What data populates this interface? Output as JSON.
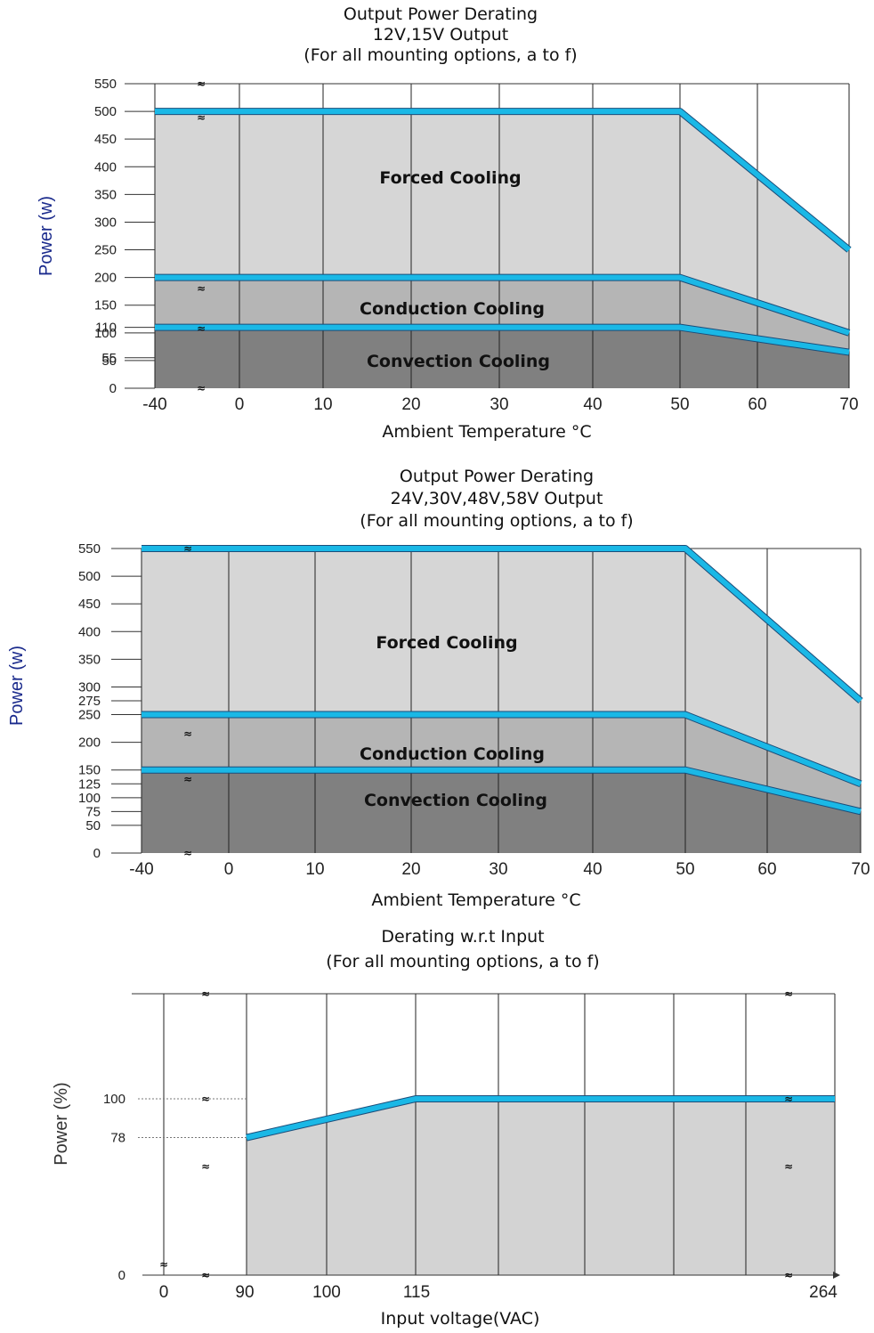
{
  "chart_data": [
    {
      "type": "area",
      "title_lines": [
        "Output Power Derating",
        "12V,15V Output",
        "(For all mounting options, a to f)"
      ],
      "xlabel": "Ambient Temperature °C",
      "ylabel": "Power (w)",
      "x_ticks": [
        "-40",
        "0",
        "10",
        "20",
        "30",
        "40",
        "50",
        "60",
        "70"
      ],
      "y_ticks": [
        "0",
        "50",
        "55",
        "100",
        "110",
        "150",
        "200",
        "250",
        "300",
        "350",
        "400",
        "450",
        "500",
        "550"
      ],
      "ylim": [
        0,
        550
      ],
      "series": [
        {
          "name": "Forced Cooling",
          "x": [
            -40,
            50,
            70
          ],
          "y": [
            500,
            500,
            250
          ]
        },
        {
          "name": "Conduction Cooling",
          "x": [
            -40,
            50,
            70
          ],
          "y": [
            200,
            200,
            100
          ]
        },
        {
          "name": "Convection Cooling",
          "x": [
            -40,
            50,
            70
          ],
          "y": [
            110,
            110,
            65
          ]
        }
      ],
      "colors": {
        "line": "#1ab8e6",
        "forced": "#d6d6d6",
        "conduction": "#b5b5b5",
        "convection": "#808080"
      }
    },
    {
      "type": "area",
      "title_lines": [
        "Output Power Derating",
        "24V,30V,48V,58V Output",
        "(For all mounting options, a to f)"
      ],
      "xlabel": "Ambient Temperature °C",
      "ylabel": "Power (w)",
      "x_ticks": [
        "-40",
        "0",
        "10",
        "20",
        "30",
        "40",
        "50",
        "60",
        "70"
      ],
      "y_ticks": [
        "0",
        "50",
        "75",
        "100",
        "125",
        "150",
        "200",
        "250",
        "275",
        "300",
        "350",
        "400",
        "450",
        "500",
        "550"
      ],
      "ylim": [
        0,
        550
      ],
      "series": [
        {
          "name": "Forced Cooling",
          "x": [
            -40,
            50,
            70
          ],
          "y": [
            550,
            550,
            275
          ]
        },
        {
          "name": "Conduction Cooling",
          "x": [
            -40,
            50,
            70
          ],
          "y": [
            250,
            250,
            125
          ]
        },
        {
          "name": "Convection Cooling",
          "x": [
            -40,
            50,
            70
          ],
          "y": [
            150,
            150,
            75
          ]
        }
      ],
      "colors": {
        "line": "#1ab8e6",
        "forced": "#d6d6d6",
        "conduction": "#b5b5b5",
        "convection": "#808080"
      }
    },
    {
      "type": "area",
      "title_lines": [
        "Derating w.r.t Input",
        "(For all mounting options, a to f)"
      ],
      "xlabel": "Input voltage(VAC)",
      "ylabel": "Power (%)",
      "x_ticks": [
        "0",
        "90",
        "100",
        "115",
        "264"
      ],
      "y_ticks": [
        "0",
        "78",
        "100"
      ],
      "series": [
        {
          "x": [
            90,
            115,
            264
          ],
          "y": [
            78,
            100,
            100
          ]
        }
      ],
      "colors": {
        "line": "#1ab8e6",
        "fill": "#d3d3d3"
      }
    }
  ]
}
